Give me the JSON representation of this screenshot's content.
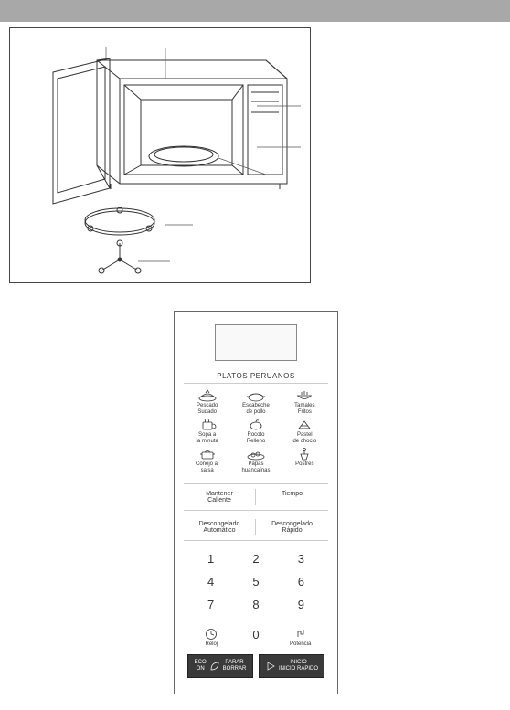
{
  "header": {
    "color": "#a8a8a8"
  },
  "microwave_diagram": {
    "border_color": "#444444",
    "callout_line_color": "#555555",
    "parts": [
      "door",
      "cavity",
      "panel",
      "turntable",
      "ring",
      "coupler"
    ]
  },
  "control_panel": {
    "section_title": "PLATOS PERUANOS",
    "display": {
      "bg": "#f9f9f9",
      "border": "#888888"
    },
    "food_icons": [
      {
        "name": "pescado-sudado",
        "label": "Pescado\nSudado"
      },
      {
        "name": "escabeche-pollo",
        "label": "Escabeche\nde pollo"
      },
      {
        "name": "tamales-fritos",
        "label": "Tamales\nFritos"
      },
      {
        "name": "sopa-tortilla",
        "label": "Sopa a\nla minuta"
      },
      {
        "name": "rocoto-relleno",
        "label": "Rocoto\nRelleno"
      },
      {
        "name": "pastel-choclo",
        "label": "Pastel\nde choclo"
      },
      {
        "name": "conejo-salsa",
        "label": "Conejo al\nsalsa"
      },
      {
        "name": "papas-huancaina",
        "label": "Papas\nhuancaínas"
      },
      {
        "name": "postres",
        "label": "Postres"
      }
    ],
    "secondary_row1": {
      "left": "Mantener\nCaliente",
      "right": "Tiempo"
    },
    "secondary_row2": {
      "left": "Descongelado\nAutomático",
      "right": "Descongelado\nRápido"
    },
    "keypad": [
      "1",
      "2",
      "3",
      "4",
      "5",
      "6",
      "7",
      "8",
      "9"
    ],
    "bottom_row": [
      {
        "name": "reloj",
        "label": "Reloj"
      },
      {
        "name": "zero",
        "label": "0"
      },
      {
        "name": "potencia",
        "label": "Potencia"
      }
    ],
    "action_buttons": [
      {
        "name": "eco-parar",
        "line1": "ECO",
        "line2": "ON",
        "line3": "PARAR",
        "line4": "BORRAR"
      },
      {
        "name": "inicio-rapido",
        "line1": "INICIO",
        "line2": "INICIO RÁPIDO"
      }
    ],
    "colors": {
      "panel_border": "#666666",
      "divider": "#cccccc",
      "action_bg": "#3a3a3a",
      "action_border": "#222222",
      "text": "#333333"
    }
  }
}
